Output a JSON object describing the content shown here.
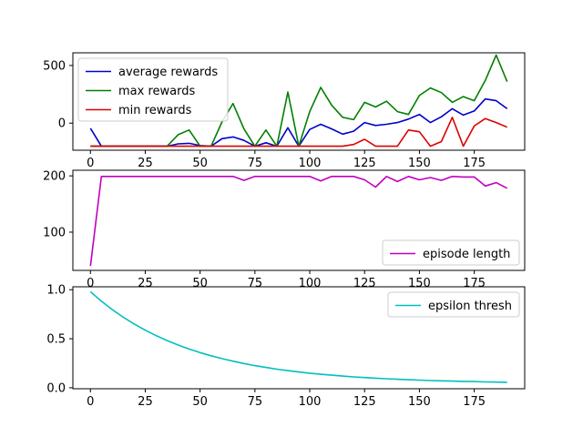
{
  "chart_data": [
    {
      "type": "line",
      "x": [
        0,
        5,
        10,
        15,
        20,
        25,
        30,
        35,
        40,
        45,
        50,
        55,
        60,
        65,
        70,
        75,
        80,
        85,
        90,
        95,
        100,
        105,
        110,
        115,
        120,
        125,
        130,
        135,
        140,
        145,
        150,
        155,
        160,
        165,
        170,
        175,
        180,
        185,
        190
      ],
      "xticks": [
        0,
        25,
        50,
        75,
        100,
        125,
        150,
        175
      ],
      "xlim": [
        -8,
        198
      ],
      "ylim": [
        -235,
        610
      ],
      "yticks": [
        0,
        500
      ],
      "legend": "upper-left",
      "series": [
        {
          "name": "average rewards",
          "color": "#0000cc",
          "values": [
            -45,
            -200,
            -200,
            -200,
            -200,
            -200,
            -200,
            -200,
            -180,
            -175,
            -195,
            -200,
            -135,
            -120,
            -150,
            -200,
            -170,
            -200,
            -40,
            -200,
            -55,
            -10,
            -50,
            -95,
            -70,
            5,
            -20,
            -10,
            5,
            35,
            75,
            5,
            55,
            125,
            70,
            105,
            210,
            195,
            125
          ]
        },
        {
          "name": "max rewards",
          "color": "#008000",
          "values": [
            -200,
            -200,
            -200,
            -200,
            -200,
            -200,
            -200,
            -200,
            -100,
            -60,
            -200,
            -200,
            10,
            170,
            -50,
            -200,
            -60,
            -200,
            270,
            -200,
            100,
            310,
            155,
            50,
            30,
            180,
            140,
            190,
            100,
            75,
            240,
            305,
            265,
            180,
            230,
            195,
            370,
            590,
            360
          ]
        },
        {
          "name": "min rewards",
          "color": "#dd0000",
          "values": [
            -200,
            -200,
            -200,
            -200,
            -200,
            -200,
            -200,
            -200,
            -200,
            -200,
            -200,
            -200,
            -200,
            -200,
            -200,
            -200,
            -200,
            -200,
            -200,
            -200,
            -200,
            -200,
            -200,
            -200,
            -185,
            -140,
            -200,
            -200,
            -200,
            -60,
            -75,
            -200,
            -160,
            50,
            -200,
            -25,
            40,
            5,
            -35
          ]
        }
      ]
    },
    {
      "type": "line",
      "x": [
        0,
        5,
        10,
        15,
        20,
        25,
        30,
        35,
        40,
        45,
        50,
        55,
        60,
        65,
        70,
        75,
        80,
        85,
        90,
        95,
        100,
        105,
        110,
        115,
        120,
        125,
        130,
        135,
        140,
        145,
        150,
        155,
        160,
        165,
        170,
        175,
        180,
        185,
        190
      ],
      "xticks": [
        0,
        25,
        50,
        75,
        100,
        125,
        150,
        175
      ],
      "xlim": [
        -8,
        198
      ],
      "ylim": [
        32,
        210
      ],
      "yticks": [
        100,
        200
      ],
      "legend": "lower-right",
      "series": [
        {
          "name": "episode length",
          "color": "#bf00bf",
          "values": [
            40,
            199,
            199,
            199,
            199,
            199,
            199,
            199,
            199,
            199,
            199,
            199,
            199,
            199,
            192,
            199,
            199,
            199,
            199,
            199,
            199,
            191,
            199,
            199,
            199,
            193,
            180,
            199,
            190,
            199,
            193,
            197,
            192,
            199,
            198,
            198,
            182,
            188,
            178
          ]
        }
      ]
    },
    {
      "type": "line",
      "x": [
        0,
        5,
        10,
        15,
        20,
        25,
        30,
        35,
        40,
        45,
        50,
        55,
        60,
        65,
        70,
        75,
        80,
        85,
        90,
        95,
        100,
        105,
        110,
        115,
        120,
        125,
        130,
        135,
        140,
        145,
        150,
        155,
        160,
        165,
        170,
        175,
        180,
        185,
        190
      ],
      "xticks": [
        0,
        25,
        50,
        75,
        100,
        125,
        150,
        175
      ],
      "xlim": [
        -8,
        198
      ],
      "ylim": [
        -0.01,
        1.03
      ],
      "yticks": [
        0.0,
        0.5,
        1.0
      ],
      "legend": "upper-right",
      "series": [
        {
          "name": "epsilon thresh",
          "color": "#00bfbf",
          "values": [
            0.98,
            0.883,
            0.797,
            0.719,
            0.65,
            0.587,
            0.531,
            0.481,
            0.436,
            0.395,
            0.359,
            0.326,
            0.297,
            0.271,
            0.247,
            0.226,
            0.207,
            0.19,
            0.175,
            0.161,
            0.149,
            0.138,
            0.128,
            0.119,
            0.111,
            0.104,
            0.098,
            0.092,
            0.087,
            0.082,
            0.078,
            0.074,
            0.071,
            0.068,
            0.065,
            0.063,
            0.06,
            0.058,
            0.056
          ]
        }
      ]
    }
  ]
}
